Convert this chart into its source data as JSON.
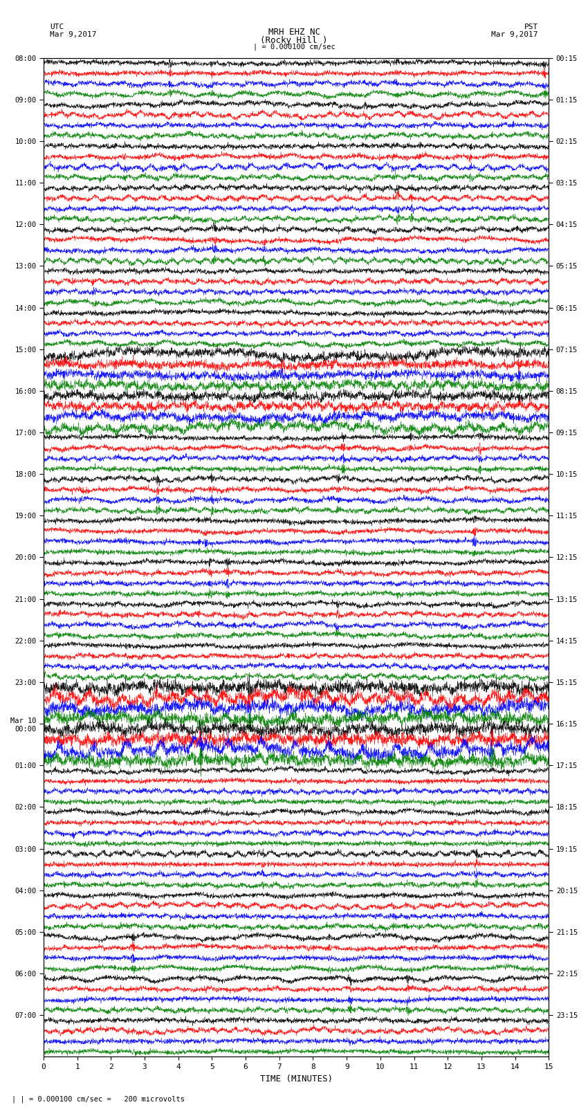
{
  "title_line1": "MRH EHZ NC",
  "title_line2": "(Rocky Hill )",
  "title_scale": "| = 0.000100 cm/sec",
  "left_header_line1": "UTC",
  "left_header_line2": "Mar 9,2017",
  "right_header_line1": "PST",
  "right_header_line2": "Mar 9,2017",
  "xlabel": "TIME (MINUTES)",
  "footnote": "| = 0.000100 cm/sec =   200 microvolts",
  "utc_labels": [
    "08:00",
    "09:00",
    "10:00",
    "11:00",
    "12:00",
    "13:00",
    "14:00",
    "15:00",
    "16:00",
    "17:00",
    "18:00",
    "19:00",
    "20:00",
    "21:00",
    "22:00",
    "23:00",
    "Mar 10\n00:00",
    "01:00",
    "02:00",
    "03:00",
    "04:00",
    "05:00",
    "06:00",
    "07:00"
  ],
  "pst_labels": [
    "00:15",
    "01:15",
    "02:15",
    "03:15",
    "04:15",
    "05:15",
    "06:15",
    "07:15",
    "08:15",
    "09:15",
    "10:15",
    "11:15",
    "12:15",
    "13:15",
    "14:15",
    "15:15",
    "16:15",
    "17:15",
    "18:15",
    "19:15",
    "20:15",
    "21:15",
    "22:15",
    "23:15"
  ],
  "num_rows": 24,
  "traces_per_row": 4,
  "trace_colors": [
    "#000000",
    "#ff0000",
    "#0000ff",
    "#008000"
  ],
  "time_minutes": 15,
  "fig_width": 8.5,
  "fig_height": 16.13,
  "bg_color": "#ffffff",
  "amplitude_scale": 0.35,
  "noise_seed": 42
}
